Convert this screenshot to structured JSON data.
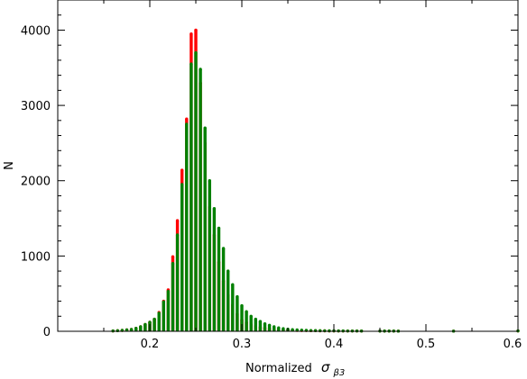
{
  "chart_data": {
    "type": "bar",
    "xlabel": "Normalized",
    "xlabel_symbol": "σ",
    "xlabel_subscript": "β3",
    "ylabel": "N",
    "xlim": [
      0.1,
      0.6
    ],
    "ylim": [
      0,
      4400
    ],
    "x_ticks": [
      0.2,
      0.3,
      0.4,
      0.5,
      0.6
    ],
    "x_tick_labels": [
      "0.2",
      "0.3",
      "0.4",
      "0.5",
      "0.6"
    ],
    "y_ticks": [
      0,
      1000,
      2000,
      3000,
      4000
    ],
    "y_tick_labels": [
      "0",
      "1000",
      "2000",
      "3000",
      "4000"
    ],
    "grid": false,
    "legend": "none",
    "series": [
      {
        "color": "#ff0000",
        "x": [
          0.16,
          0.165,
          0.17,
          0.175,
          0.18,
          0.185,
          0.19,
          0.195,
          0.2,
          0.205,
          0.21,
          0.215,
          0.22,
          0.225,
          0.23,
          0.235,
          0.24,
          0.245,
          0.25,
          0.255,
          0.26,
          0.265,
          0.27,
          0.275,
          0.28,
          0.285,
          0.29,
          0.295,
          0.3,
          0.305,
          0.31,
          0.315,
          0.32,
          0.325,
          0.33,
          0.335,
          0.34,
          0.345,
          0.35,
          0.355,
          0.36,
          0.365,
          0.37,
          0.375,
          0.38,
          0.385,
          0.39,
          0.395,
          0.4,
          0.405,
          0.41,
          0.415,
          0.42,
          0.425,
          0.43,
          0.45,
          0.455,
          0.46,
          0.465,
          0.47,
          0.53,
          0.6
        ],
        "values": [
          5,
          8,
          12,
          18,
          25,
          40,
          60,
          90,
          120,
          160,
          250,
          400,
          550,
          990,
          1470,
          2140,
          2820,
          3950,
          4000,
          3300,
          2500,
          1650,
          1280,
          920,
          670,
          480,
          350,
          230,
          150,
          120,
          90,
          70,
          55,
          45,
          35,
          30,
          25,
          20,
          18,
          15,
          12,
          10,
          10,
          8,
          8,
          6,
          6,
          5,
          5,
          5,
          4,
          4,
          4,
          4,
          3,
          3,
          3,
          3,
          3,
          2,
          2,
          5
        ]
      },
      {
        "color": "#008000",
        "x": [
          0.16,
          0.165,
          0.17,
          0.175,
          0.18,
          0.185,
          0.19,
          0.195,
          0.2,
          0.205,
          0.21,
          0.215,
          0.22,
          0.225,
          0.23,
          0.235,
          0.24,
          0.245,
          0.25,
          0.255,
          0.26,
          0.265,
          0.27,
          0.275,
          0.28,
          0.285,
          0.29,
          0.295,
          0.3,
          0.305,
          0.31,
          0.315,
          0.32,
          0.325,
          0.33,
          0.335,
          0.34,
          0.345,
          0.35,
          0.355,
          0.36,
          0.365,
          0.37,
          0.375,
          0.38,
          0.385,
          0.39,
          0.395,
          0.4,
          0.405,
          0.41,
          0.415,
          0.42,
          0.425,
          0.43,
          0.45,
          0.455,
          0.46,
          0.465,
          0.47,
          0.53,
          0.6
        ],
        "values": [
          5,
          8,
          12,
          18,
          25,
          40,
          60,
          90,
          120,
          160,
          240,
          390,
          530,
          900,
          1280,
          1950,
          2750,
          3550,
          3700,
          3480,
          2700,
          2000,
          1630,
          1370,
          1100,
          800,
          620,
          460,
          340,
          260,
          200,
          160,
          130,
          100,
          80,
          60,
          45,
          35,
          28,
          22,
          18,
          15,
          12,
          10,
          9,
          8,
          7,
          6,
          6,
          5,
          5,
          4,
          4,
          4,
          3,
          3,
          3,
          3,
          3,
          2,
          2,
          5
        ]
      }
    ]
  }
}
